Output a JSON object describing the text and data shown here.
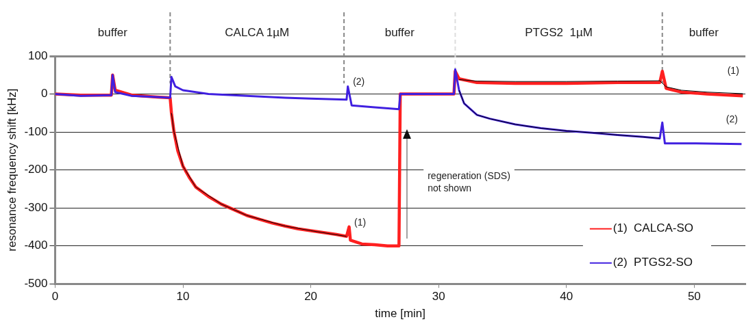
{
  "chart_data": {
    "type": "line",
    "xlabel": "time [min]",
    "ylabel": "resonance frequency shift [kHz]",
    "xlim": [
      0,
      54
    ],
    "xticks": [
      0,
      10,
      20,
      30,
      40,
      50
    ],
    "ylim": [
      -500,
      100
    ],
    "yticks": [
      -500,
      -400,
      -300,
      -200,
      -100,
      0,
      100
    ],
    "grid": "y",
    "legend": "bottom right",
    "marker": "none",
    "line_style": "solid",
    "series": [
      {
        "name": "(1)  CALCA-SO",
        "color": "#ff2020",
        "x": [
          0,
          2,
          4.4,
          4.5,
          4.7,
          6,
          8,
          9,
          9.1,
          9.3,
          9.6,
          10,
          10.5,
          11,
          12,
          13,
          14,
          15,
          16,
          17,
          18,
          19,
          20,
          21,
          22,
          22.8,
          23,
          23.1,
          24,
          25,
          26,
          26.9,
          27,
          28,
          30,
          31.2,
          31.3,
          31.6,
          33,
          36,
          40,
          44,
          47.3,
          47.5,
          47.8,
          49,
          51,
          53.8
        ],
        "values": [
          0,
          -3,
          -3,
          50,
          10,
          -3,
          -8,
          -10,
          -50,
          -100,
          -150,
          -190,
          -220,
          -245,
          -270,
          -290,
          -305,
          -320,
          -330,
          -340,
          -348,
          -355,
          -360,
          -365,
          -370,
          -375,
          -350,
          -385,
          -395,
          -397,
          -400,
          -400,
          0,
          0,
          0,
          0,
          60,
          40,
          30,
          28,
          28,
          30,
          30,
          60,
          15,
          5,
          0,
          -5
        ]
      },
      {
        "name": "(2)  PTGS2-SO",
        "color": "#4020e0",
        "x": [
          0,
          2,
          4.4,
          4.5,
          4.7,
          6,
          8,
          9,
          9.1,
          9.4,
          10,
          12,
          15,
          18,
          20,
          22.8,
          22.9,
          23.2,
          25,
          26.9,
          27,
          28,
          30,
          31.2,
          31.3,
          31.6,
          32,
          33,
          34,
          36,
          38,
          40,
          42,
          44,
          46,
          47.3,
          47.5,
          47.7,
          50,
          53.7
        ],
        "values": [
          0,
          -5,
          -3,
          50,
          5,
          -5,
          -8,
          -10,
          45,
          20,
          10,
          0,
          -5,
          -10,
          -12,
          -15,
          20,
          -30,
          -35,
          -40,
          0,
          0,
          0,
          0,
          65,
          10,
          -25,
          -55,
          -65,
          -80,
          -90,
          -97,
          -102,
          -108,
          -113,
          -117,
          -75,
          -130,
          -130,
          -132
        ]
      },
      {
        "color": "#000000",
        "x": [
          9.1,
          9.3,
          10,
          11,
          13,
          15,
          18,
          20,
          22.8
        ],
        "values": [
          -50,
          -100,
          -190,
          -245,
          -290,
          -320,
          -348,
          -360,
          -375
        ]
      },
      {
        "color": "#000000",
        "x": [
          31.6,
          32,
          33,
          34,
          36,
          38,
          40,
          42,
          44,
          46,
          47.3
        ],
        "values": [
          10,
          -25,
          -55,
          -65,
          -80,
          -90,
          -97,
          -102,
          -108,
          -113,
          -117
        ]
      },
      {
        "color": "#000000",
        "x": [
          31.6,
          33,
          36,
          40,
          44,
          47.3,
          47.8,
          49,
          51,
          53.8
        ],
        "values": [
          38,
          34,
          33,
          33,
          34,
          35,
          19,
          10,
          5,
          1
        ]
      }
    ],
    "ref_lines": [
      {
        "axis": "x",
        "value": 9,
        "line_style": "dashed",
        "color": "#888888"
      },
      {
        "axis": "x",
        "value": 22.6,
        "line_style": "dashed",
        "color": "#888888"
      },
      {
        "axis": "x",
        "value": 31.3,
        "line_style": "dashed",
        "color": "#dddddd"
      },
      {
        "axis": "x",
        "value": 47.5,
        "line_style": "dashed",
        "color": "#888888"
      }
    ],
    "annotations": [
      "buffer",
      "CALCA 1µM",
      "buffer",
      "PTGS2  1µM",
      "buffer",
      {
        "text": "(2)",
        "x": 22.9,
        "y": 20
      },
      {
        "text": "(1)",
        "x": 23,
        "y": -350
      },
      {
        "text": "(1)",
        "x": 53.8,
        "y": -5
      },
      {
        "text": "(2)",
        "x": 53.7,
        "y": -132
      },
      "regeneration (SDS)\nnot shown"
    ]
  }
}
